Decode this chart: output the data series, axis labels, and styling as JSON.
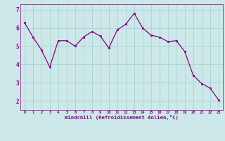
{
  "x": [
    0,
    1,
    2,
    3,
    4,
    5,
    6,
    7,
    8,
    9,
    10,
    11,
    12,
    13,
    14,
    15,
    16,
    17,
    18,
    19,
    20,
    21,
    22,
    23
  ],
  "y": [
    6.3,
    5.5,
    4.8,
    3.85,
    5.3,
    5.3,
    5.0,
    5.5,
    5.8,
    5.55,
    4.9,
    5.9,
    6.2,
    6.8,
    6.0,
    5.6,
    5.5,
    5.25,
    5.3,
    4.7,
    3.4,
    2.95,
    2.7,
    2.05
  ],
  "line_color": "#8B008B",
  "marker_color": "#8B008B",
  "bg_color": "#cce8e8",
  "grid_color": "#b0d8d8",
  "xlabel": "Windchill (Refroidissement éolien,°C)",
  "xlabel_color": "#8B008B",
  "tick_color": "#8B008B",
  "spine_color": "#8B008B",
  "ylim": [
    1.5,
    7.3
  ],
  "yticks": [
    2,
    3,
    4,
    5,
    6,
    7
  ],
  "xticks": [
    0,
    1,
    2,
    3,
    4,
    5,
    6,
    7,
    8,
    9,
    10,
    11,
    12,
    13,
    14,
    15,
    16,
    17,
    18,
    19,
    20,
    21,
    22,
    23
  ],
  "xlim": [
    -0.5,
    23.5
  ]
}
